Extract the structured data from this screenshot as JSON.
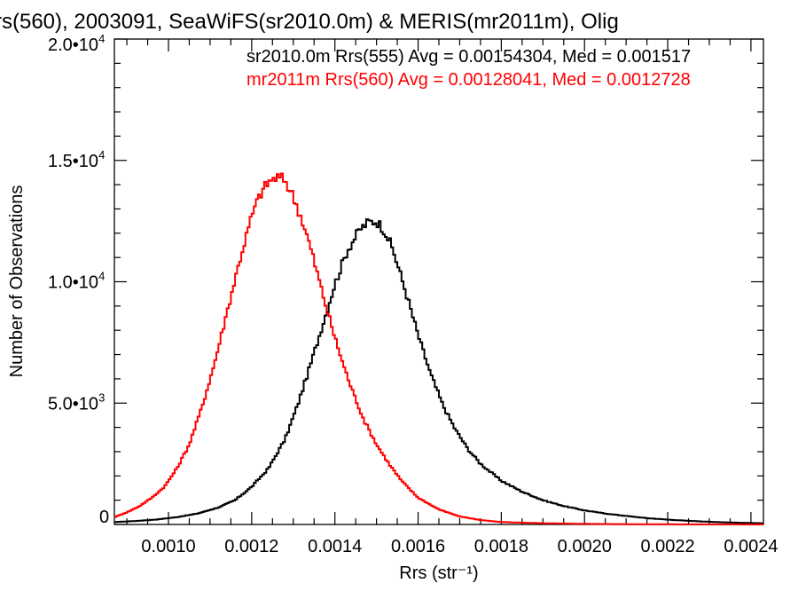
{
  "chart_data": {
    "type": "line",
    "title": "rs(560), 2003091, SeaWiFS(sr2010.0m) & MERIS(mr2011m), Olig",
    "xlabel": "Rrs (str⁻¹)",
    "ylabel": "Number of Observations",
    "xlim": [
      0.00087,
      0.00243
    ],
    "ylim": [
      0,
      20000
    ],
    "x_ticks": [
      {
        "value": 0.001,
        "label": "0.0010"
      },
      {
        "value": 0.0012,
        "label": "0.0012"
      },
      {
        "value": 0.0014,
        "label": "0.0014"
      },
      {
        "value": 0.0016,
        "label": "0.0016"
      },
      {
        "value": 0.0018,
        "label": "0.0018"
      },
      {
        "value": 0.002,
        "label": "0.0020"
      },
      {
        "value": 0.0022,
        "label": "0.0022"
      },
      {
        "value": 0.0024,
        "label": "0.0024"
      }
    ],
    "y_ticks": [
      {
        "value": 0,
        "mant": "0",
        "exp": ""
      },
      {
        "value": 5000,
        "mant": "5.0•10",
        "exp": "3"
      },
      {
        "value": 10000,
        "mant": "1.0•10",
        "exp": "4"
      },
      {
        "value": 15000,
        "mant": "1.5•10",
        "exp": "4"
      },
      {
        "value": 20000,
        "mant": "2.0•10",
        "exp": "4"
      }
    ],
    "grid": false,
    "legend_position": "top-right",
    "series": [
      {
        "name": "sr2010.0m Rrs(555) Avg = 0.00154304, Med = 0.001517",
        "color": "#000000",
        "x": [
          0.00087,
          0.00092,
          0.00097,
          0.00102,
          0.00107,
          0.00112,
          0.00116,
          0.0012,
          0.00124,
          0.00128,
          0.00131,
          0.00134,
          0.00137,
          0.0014,
          0.00143,
          0.00146,
          0.00148,
          0.0015,
          0.00152,
          0.00154,
          0.00157,
          0.0016,
          0.00163,
          0.00166,
          0.00169,
          0.00172,
          0.00175,
          0.0018,
          0.00185,
          0.0019,
          0.00195,
          0.002,
          0.00205,
          0.0021,
          0.00215,
          0.0022,
          0.00225,
          0.0023,
          0.00235,
          0.0024,
          0.00243
        ],
        "y": [
          100,
          140,
          200,
          300,
          450,
          700,
          1000,
          1550,
          2300,
          3500,
          4900,
          6500,
          8200,
          9900,
          11300,
          12150,
          12450,
          12500,
          12100,
          11300,
          9600,
          7800,
          6200,
          4900,
          3900,
          3100,
          2500,
          1800,
          1350,
          1000,
          760,
          580,
          450,
          350,
          260,
          200,
          150,
          110,
          80,
          60,
          50
        ]
      },
      {
        "name": "mr2011m Rrs(560) Avg = 0.00128041, Med = 0.0012728",
        "color": "#ff0000",
        "x": [
          0.00087,
          0.0009,
          0.00093,
          0.00096,
          0.00099,
          0.00102,
          0.00105,
          0.00108,
          0.00111,
          0.00114,
          0.00117,
          0.0012,
          0.00122,
          0.00124,
          0.00126,
          0.00128,
          0.0013,
          0.00132,
          0.00134,
          0.00136,
          0.00138,
          0.0014,
          0.00142,
          0.00144,
          0.00147,
          0.0015,
          0.00153,
          0.00156,
          0.0016,
          0.00165,
          0.0017,
          0.00175,
          0.0018,
          0.0019,
          0.002,
          0.0021,
          0.0022,
          0.0023,
          0.00243
        ],
        "y": [
          300,
          500,
          750,
          1100,
          1550,
          2300,
          3300,
          4800,
          6600,
          8700,
          10800,
          12700,
          13600,
          14100,
          14300,
          14200,
          13500,
          12600,
          11500,
          10200,
          8900,
          7700,
          6600,
          5600,
          4300,
          3300,
          2500,
          1800,
          1100,
          620,
          330,
          180,
          100,
          50,
          25,
          12,
          6,
          3,
          1
        ]
      }
    ]
  }
}
